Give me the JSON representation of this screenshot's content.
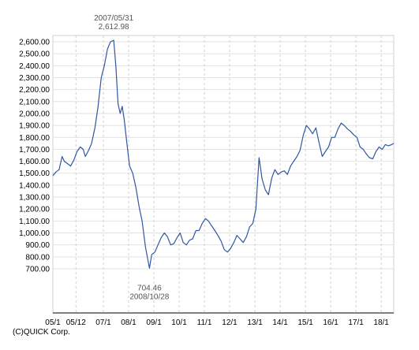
{
  "chart_data": {
    "type": "line",
    "title": "",
    "xlabel": "",
    "ylabel": "",
    "ylim": [
      700,
      2600
    ],
    "y_ticks": [
      2600,
      2500,
      2400,
      2300,
      2200,
      2100,
      2000,
      1900,
      1800,
      1700,
      1600,
      1500,
      1400,
      1300,
      1200,
      1100,
      1000,
      900,
      800,
      700
    ],
    "y_tick_labels": [
      "2,600.00",
      "2,500.00",
      "2,400.00",
      "2,300.00",
      "2,200.00",
      "2,100.00",
      "2,000.00",
      "1,900.00",
      "1,800.00",
      "1,700.00",
      "1,600.00",
      "1,500.00",
      "1,400.00",
      "1,300.00",
      "1,200.00",
      "1,100.00",
      "1,000.00",
      "900.00",
      "800.00",
      "700.00"
    ],
    "x_ticks": [
      "2005-01-01",
      "2005-12-01",
      "2007-01-01",
      "2008-01-01",
      "2009-01-01",
      "2010-01-01",
      "2011-01-01",
      "2012-01-01",
      "2013-01-01",
      "2014-01-01",
      "2015-01-01",
      "2016-01-01",
      "2017-01-01",
      "2018-01-01"
    ],
    "x_tick_labels": [
      "05/1",
      "05/12",
      "07/1",
      "08/1",
      "09/1",
      "10/1",
      "11/1",
      "12/1",
      "13/1",
      "14/1",
      "15/1",
      "16/1",
      "17/1",
      "18/1"
    ],
    "xlim": [
      "2005-01-01",
      "2018-07-01"
    ],
    "grid": true,
    "series": [
      {
        "color": "#2f57a3",
        "x": [
          "2005-01-01",
          "2005-02-15",
          "2005-04-01",
          "2005-05-15",
          "2005-06-15",
          "2005-08-01",
          "2005-09-15",
          "2005-11-01",
          "2005-12-15",
          "2006-02-01",
          "2006-03-15",
          "2006-04-15",
          "2006-06-01",
          "2006-07-15",
          "2006-09-01",
          "2006-10-15",
          "2006-12-01",
          "2007-01-15",
          "2007-03-01",
          "2007-04-15",
          "2007-05-31",
          "2007-06-30",
          "2007-08-01",
          "2007-09-01",
          "2007-10-01",
          "2007-11-01",
          "2007-12-01",
          "2008-01-15",
          "2008-03-01",
          "2008-04-15",
          "2008-06-01",
          "2008-07-15",
          "2008-09-01",
          "2008-10-28",
          "2008-12-01",
          "2009-01-15",
          "2009-03-01",
          "2009-04-15",
          "2009-06-01",
          "2009-07-15",
          "2009-09-01",
          "2009-10-15",
          "2009-12-01",
          "2010-01-15",
          "2010-03-01",
          "2010-04-15",
          "2010-06-01",
          "2010-07-15",
          "2010-09-01",
          "2010-10-15",
          "2010-12-01",
          "2011-01-15",
          "2011-03-01",
          "2011-04-15",
          "2011-06-01",
          "2011-07-15",
          "2011-09-01",
          "2011-10-15",
          "2011-12-01",
          "2012-01-15",
          "2012-03-01",
          "2012-04-15",
          "2012-06-01",
          "2012-07-15",
          "2012-09-01",
          "2012-10-15",
          "2012-12-01",
          "2013-01-15",
          "2013-03-01",
          "2013-04-15",
          "2013-06-01",
          "2013-07-15",
          "2013-09-01",
          "2013-10-15",
          "2013-12-01",
          "2014-01-15",
          "2014-03-01",
          "2014-04-15",
          "2014-06-01",
          "2014-07-15",
          "2014-09-01",
          "2014-10-15",
          "2014-12-01",
          "2015-01-15",
          "2015-03-01",
          "2015-04-15",
          "2015-06-01",
          "2015-07-15",
          "2015-09-01",
          "2015-10-15",
          "2015-12-01",
          "2016-01-15",
          "2016-03-01",
          "2016-04-15",
          "2016-06-01",
          "2016-07-15",
          "2016-09-01",
          "2016-10-15",
          "2016-12-01",
          "2017-01-15",
          "2017-03-01",
          "2017-04-15",
          "2017-06-01",
          "2017-07-15",
          "2017-09-01",
          "2017-10-15",
          "2017-12-01",
          "2018-01-15",
          "2018-03-01",
          "2018-04-15",
          "2018-06-01",
          "2018-07-01"
        ],
        "values": [
          1480,
          1510,
          1530,
          1640,
          1600,
          1580,
          1560,
          1610,
          1680,
          1720,
          1700,
          1640,
          1690,
          1750,
          1880,
          2050,
          2300,
          2400,
          2540,
          2600,
          2612.98,
          2400,
          2080,
          2000,
          2060,
          1940,
          1780,
          1560,
          1500,
          1380,
          1220,
          1100,
          880,
          704.46,
          820,
          840,
          900,
          960,
          1000,
          970,
          900,
          910,
          960,
          1000,
          920,
          900,
          940,
          950,
          1020,
          1020,
          1080,
          1120,
          1100,
          1060,
          1020,
          980,
          930,
          860,
          840,
          870,
          920,
          980,
          950,
          920,
          970,
          1050,
          1080,
          1200,
          1630,
          1450,
          1360,
          1320,
          1460,
          1530,
          1490,
          1510,
          1520,
          1490,
          1560,
          1600,
          1640,
          1690,
          1820,
          1900,
          1870,
          1830,
          1880,
          1760,
          1640,
          1680,
          1720,
          1800,
          1800,
          1870,
          1920,
          1900,
          1870,
          1850,
          1820,
          1800,
          1720,
          1700,
          1660,
          1630,
          1620,
          1680,
          1720,
          1700,
          1740,
          1730,
          1740,
          1750
        ]
      }
    ],
    "annotations": [
      {
        "lines": [
          "2007/05/31",
          "2,612.98"
        ],
        "x": "2007-05-31",
        "y": 2612.98,
        "position": "above"
      },
      {
        "lines": [
          "704.46",
          "2008/10/28"
        ],
        "x": "2008-10-28",
        "y": 704.46,
        "position": "below"
      }
    ]
  },
  "footer": {
    "copyright": "(C)QUICK Corp."
  }
}
